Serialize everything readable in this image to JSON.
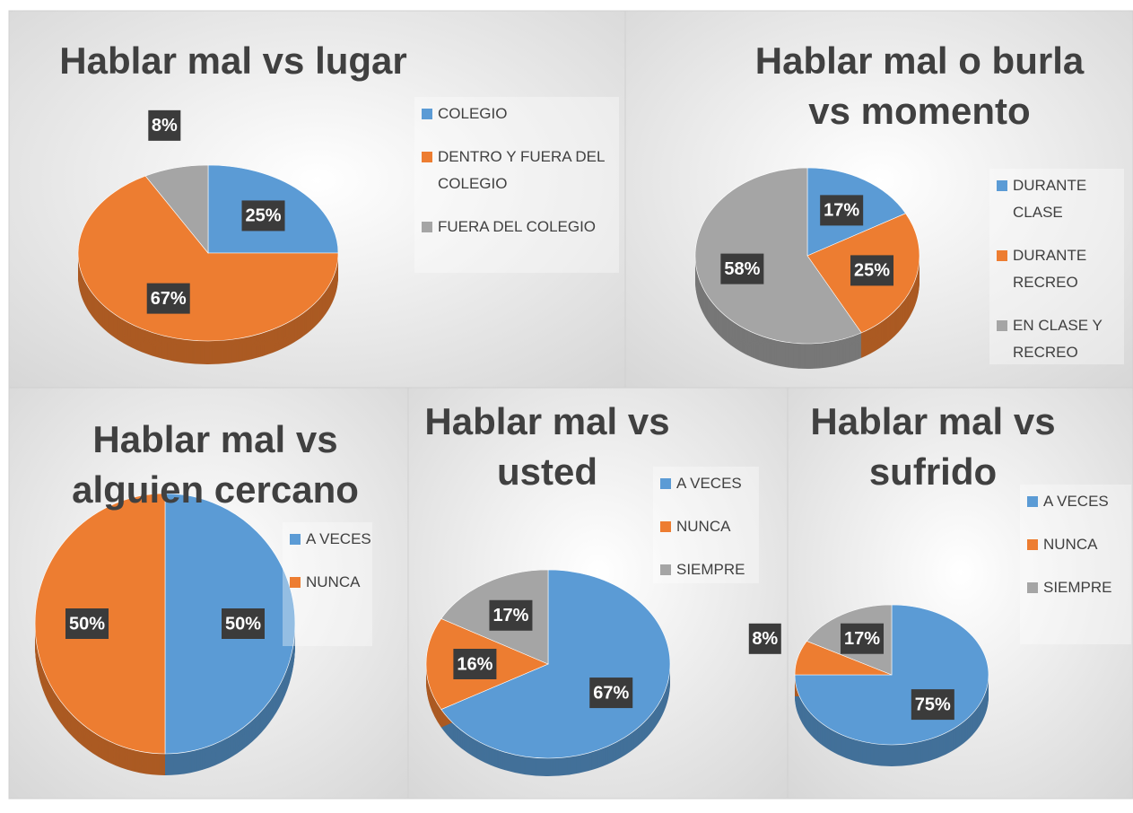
{
  "chart_data": [
    {
      "type": "pie",
      "title": "Hablar mal vs lugar",
      "categories": [
        "COLEGIO",
        "DENTRO Y FUERA DEL COLEGIO",
        "FUERA DEL COLEGIO"
      ],
      "values": [
        25,
        67,
        8
      ],
      "colors": [
        "#5b9bd5",
        "#ed7d31",
        "#a5a5a5"
      ]
    },
    {
      "type": "pie",
      "title": "Hablar mal o burla vs momento",
      "categories": [
        "DURANTE CLASE",
        "DURANTE RECREO",
        "EN CLASE Y RECREO"
      ],
      "values": [
        17,
        25,
        58
      ],
      "colors": [
        "#5b9bd5",
        "#ed7d31",
        "#a5a5a5"
      ]
    },
    {
      "type": "pie",
      "title": "Hablar mal vs alguien cercano",
      "categories": [
        "A VECES",
        "NUNCA"
      ],
      "values": [
        50,
        50
      ],
      "colors": [
        "#5b9bd5",
        "#ed7d31"
      ]
    },
    {
      "type": "pie",
      "title": "Hablar mal vs usted",
      "categories": [
        "A VECES",
        "NUNCA",
        "SIEMPRE"
      ],
      "values": [
        67,
        16,
        17
      ],
      "colors": [
        "#5b9bd5",
        "#ed7d31",
        "#a5a5a5"
      ]
    },
    {
      "type": "pie",
      "title": "Hablar mal vs sufrido",
      "categories": [
        "A VECES",
        "NUNCA",
        "SIEMPRE"
      ],
      "values": [
        75,
        8,
        17
      ],
      "colors": [
        "#5b9bd5",
        "#ed7d31",
        "#a5a5a5"
      ]
    }
  ]
}
